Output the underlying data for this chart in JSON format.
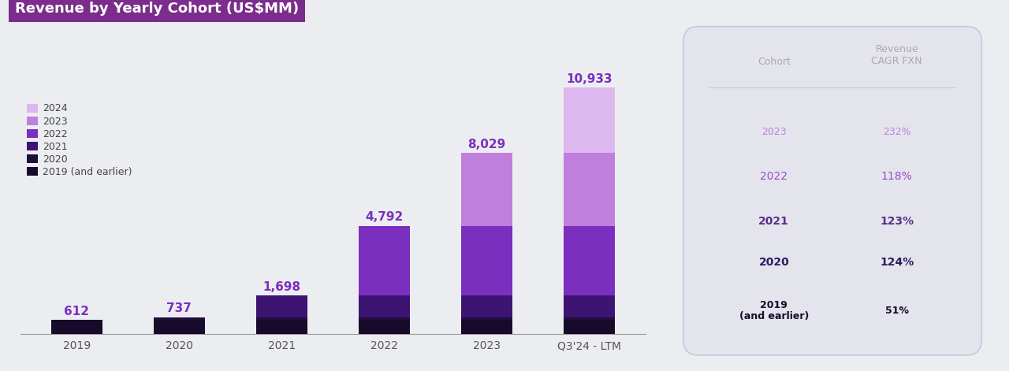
{
  "title": "Revenue by Yearly Cohort (US$MM)",
  "title_bg_color": "#7B2D8B",
  "title_text_color": "#FFFFFF",
  "background_color": "#ECEDF1",
  "categories": [
    "2019",
    "2020",
    "2021",
    "2022",
    "2023",
    "Q3'24 - LTM"
  ],
  "totals": [
    612,
    737,
    1698,
    4792,
    8029,
    10933
  ],
  "cohort_labels": [
    "2019 (and earlier)",
    "2020",
    "2021",
    "2022",
    "2023",
    "2024"
  ],
  "cohort_colors": [
    "#180A2A",
    "#200E3A",
    "#3D1472",
    "#7B2FBE",
    "#C07FDC",
    "#DDB8EF"
  ],
  "stacked_data": {
    "2019_earlier": [
      612,
      612,
      612,
      612,
      612,
      612
    ],
    "2020": [
      0,
      125,
      125,
      125,
      125,
      125
    ],
    "2021": [
      0,
      0,
      961,
      961,
      961,
      961
    ],
    "2022": [
      0,
      0,
      0,
      3094,
      3094,
      3094
    ],
    "2023": [
      0,
      0,
      0,
      0,
      3237,
      3237
    ],
    "2024": [
      0,
      0,
      0,
      0,
      0,
      2904
    ]
  },
  "bar_width": 0.5,
  "label_color": "#7B2FBE",
  "total_label_fontsize": 11,
  "legend_fontsize": 9,
  "tick_fontsize": 10,
  "table_cohorts": [
    "2023",
    "2022",
    "2021",
    "2020",
    "2019\n(and earlier)"
  ],
  "table_cagr": [
    "232%",
    "118%",
    "123%",
    "124%",
    "51%"
  ],
  "table_cohort_colors": [
    "#C07FDC",
    "#9B4DC8",
    "#5B2D8E",
    "#2D1B5E",
    "#180A2A"
  ],
  "table_cagr_colors": [
    "#C07FDC",
    "#9B4DC8",
    "#5B2D8E",
    "#2D1B5E",
    "#180A2A"
  ],
  "table_header_color": "#AAAAAA",
  "table_bg_color": "#E4E4EC",
  "table_border_color": "#C8C8D8"
}
